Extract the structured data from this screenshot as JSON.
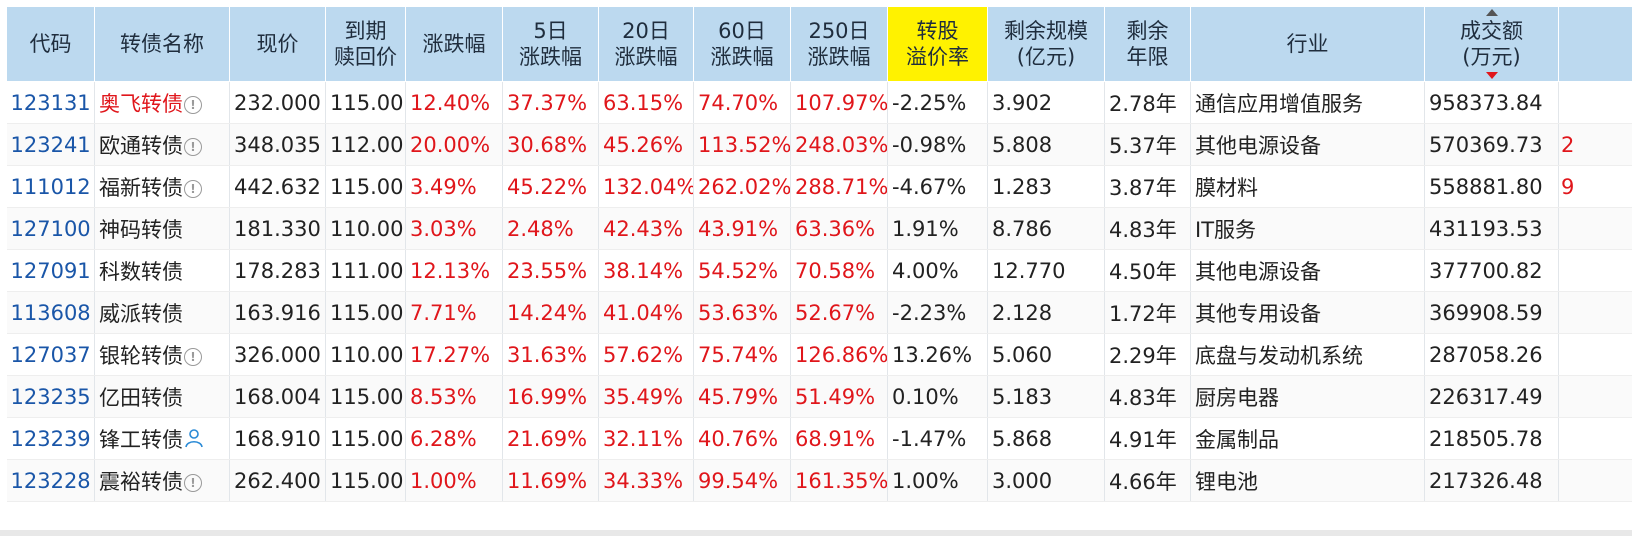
{
  "headers": [
    [
      "代码"
    ],
    [
      "转债名称"
    ],
    [
      "现价"
    ],
    [
      "到期",
      "赎回价"
    ],
    [
      "涨跌幅"
    ],
    [
      "5日",
      "涨跌幅"
    ],
    [
      "20日",
      "涨跌幅"
    ],
    [
      "60日",
      "涨跌幅"
    ],
    [
      "250日",
      "涨跌幅"
    ],
    [
      "转股",
      "溢价率"
    ],
    [
      "剩余规模",
      "(亿元)"
    ],
    [
      "剩余",
      "年限"
    ],
    [
      "行业"
    ],
    [
      "成交额",
      "(万元)"
    ],
    [
      ""
    ]
  ],
  "highlight_color": "#fff200",
  "rows": [
    {
      "code": "123131",
      "name": "奥飞转债",
      "icon": "info-icon",
      "price": "232.000",
      "redeem": "115.00",
      "chg": "12.40%",
      "chg5": "37.37%",
      "chg20": "63.15%",
      "chg60": "74.70%",
      "chg250": "107.97%",
      "premium": "-2.25%",
      "scale": "3.902",
      "years": "2.78年",
      "industry": "通信应用增值服务",
      "turnover": "958373.84",
      "extra": ""
    },
    {
      "code": "123241",
      "name": "欧通转债",
      "icon": "info-icon",
      "price": "348.035",
      "redeem": "112.00",
      "chg": "20.00%",
      "chg5": "30.68%",
      "chg20": "45.26%",
      "chg60": "113.52%",
      "chg250": "248.03%",
      "premium": "-0.98%",
      "scale": "5.808",
      "years": "5.37年",
      "industry": "其他电源设备",
      "turnover": "570369.73",
      "extra": "2"
    },
    {
      "code": "111012",
      "name": "福新转债",
      "icon": "info-icon",
      "price": "442.632",
      "redeem": "115.00",
      "chg": "3.49%",
      "chg5": "45.22%",
      "chg20": "132.04%",
      "chg60": "262.02%",
      "chg250": "288.71%",
      "premium": "-4.67%",
      "scale": "1.283",
      "years": "3.87年",
      "industry": "膜材料",
      "turnover": "558881.80",
      "extra": "9"
    },
    {
      "code": "127100",
      "name": "神码转债",
      "icon": "",
      "price": "181.330",
      "redeem": "110.00",
      "chg": "3.03%",
      "chg5": "2.48%",
      "chg20": "42.43%",
      "chg60": "43.91%",
      "chg250": "63.36%",
      "premium": "1.91%",
      "scale": "8.786",
      "years": "4.83年",
      "industry": "IT服务",
      "turnover": "431193.53",
      "extra": ""
    },
    {
      "code": "127091",
      "name": "科数转债",
      "icon": "",
      "price": "178.283",
      "redeem": "111.00",
      "chg": "12.13%",
      "chg5": "23.55%",
      "chg20": "38.14%",
      "chg60": "54.52%",
      "chg250": "70.58%",
      "premium": "4.00%",
      "scale": "12.770",
      "years": "4.50年",
      "industry": "其他电源设备",
      "turnover": "377700.82",
      "extra": ""
    },
    {
      "code": "113608",
      "name": "威派转债",
      "icon": "",
      "price": "163.916",
      "redeem": "115.00",
      "chg": "7.71%",
      "chg5": "14.24%",
      "chg20": "41.04%",
      "chg60": "53.63%",
      "chg250": "52.67%",
      "premium": "-2.23%",
      "scale": "2.128",
      "years": "1.72年",
      "industry": "其他专用设备",
      "turnover": "369908.59",
      "extra": ""
    },
    {
      "code": "127037",
      "name": "银轮转债",
      "icon": "info-icon",
      "price": "326.000",
      "redeem": "110.00",
      "chg": "17.27%",
      "chg5": "31.63%",
      "chg20": "57.62%",
      "chg60": "75.74%",
      "chg250": "126.86%",
      "premium": "13.26%",
      "scale": "5.060",
      "years": "2.29年",
      "industry": "底盘与发动机系统",
      "turnover": "287058.26",
      "extra": ""
    },
    {
      "code": "123235",
      "name": "亿田转债",
      "icon": "",
      "price": "168.004",
      "redeem": "115.00",
      "chg": "8.53%",
      "chg5": "16.99%",
      "chg20": "35.49%",
      "chg60": "45.79%",
      "chg250": "51.49%",
      "premium": "0.10%",
      "scale": "5.183",
      "years": "4.83年",
      "industry": "厨房电器",
      "turnover": "226317.49",
      "extra": ""
    },
    {
      "code": "123239",
      "name": "锋工转债",
      "icon": "user-icon",
      "price": "168.910",
      "redeem": "115.00",
      "chg": "6.28%",
      "chg5": "21.69%",
      "chg20": "32.11%",
      "chg60": "40.76%",
      "chg250": "68.91%",
      "premium": "-1.47%",
      "scale": "5.868",
      "years": "4.91年",
      "industry": "金属制品",
      "turnover": "218505.78",
      "extra": ""
    },
    {
      "code": "123228",
      "name": "震裕转债",
      "icon": "info-icon",
      "price": "262.400",
      "redeem": "115.00",
      "chg": "1.00%",
      "chg5": "11.69%",
      "chg20": "34.33%",
      "chg60": "99.54%",
      "chg250": "161.35%",
      "premium": "1.00%",
      "scale": "3.000",
      "years": "4.66年",
      "industry": "锂电池",
      "turnover": "217326.48",
      "extra": ""
    }
  ]
}
